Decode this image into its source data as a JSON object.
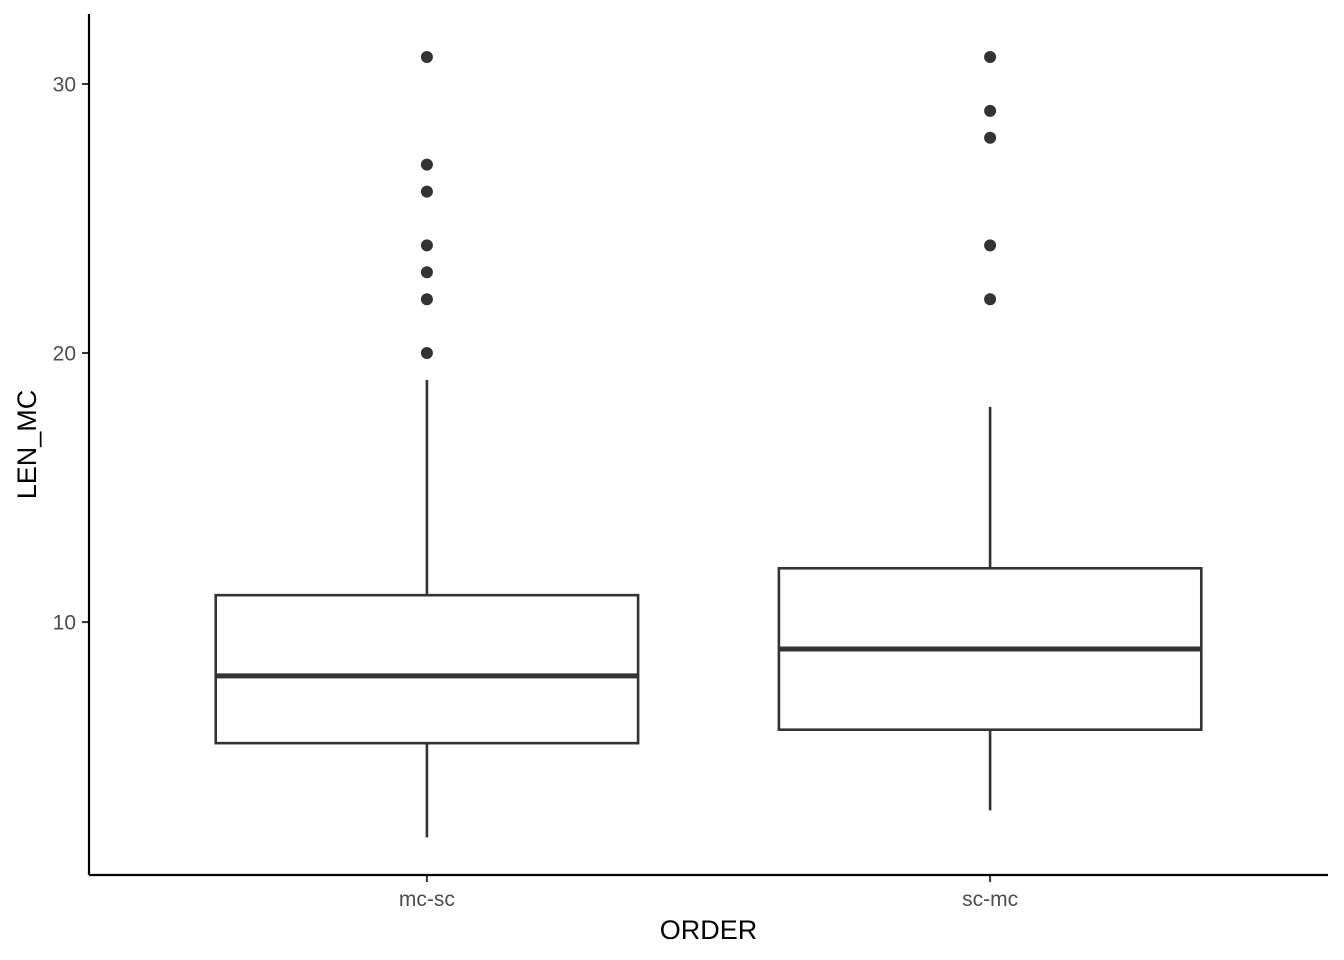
{
  "chart_data": {
    "type": "box",
    "xlabel": "ORDER",
    "ylabel": "LEN_MC",
    "ylim": [
      0.6,
      32.6
    ],
    "yticks": [
      10,
      20,
      30
    ],
    "categories": [
      "mc-sc",
      "sc-mc"
    ],
    "boxes": [
      {
        "category": "mc-sc",
        "whisker_low": 2,
        "q1": 5.5,
        "median": 8,
        "q3": 11,
        "whisker_high": 19,
        "outliers": [
          20,
          22,
          23,
          24,
          26,
          27,
          31
        ]
      },
      {
        "category": "sc-mc",
        "whisker_low": 3,
        "q1": 6,
        "median": 9,
        "q3": 12,
        "whisker_high": 18,
        "outliers": [
          22,
          24,
          28,
          29,
          31
        ]
      }
    ],
    "grid": false,
    "legend": "none"
  }
}
